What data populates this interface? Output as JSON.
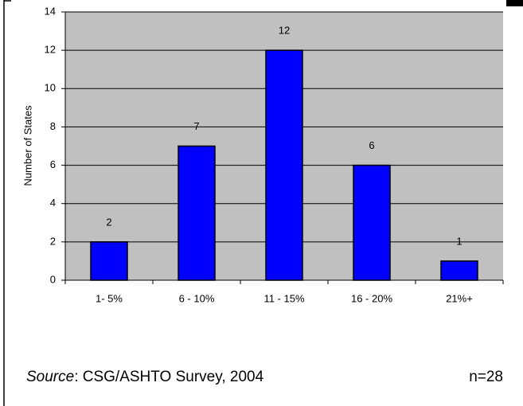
{
  "chart_data": {
    "type": "bar",
    "y_label": "Number of States",
    "categories": [
      "1- 5%",
      "6 - 10%",
      "11 - 15%",
      "16 - 20%",
      "21%+"
    ],
    "values": [
      2,
      7,
      12,
      6,
      1
    ],
    "color": "#0000ff",
    "ylim": [
      0,
      14
    ],
    "yticks": [
      0,
      2,
      4,
      6,
      8,
      10,
      12,
      14
    ],
    "grid": true,
    "source": {
      "label": "Source",
      "text": ": CSG/ASHTO Survey, 2004"
    },
    "note": "n=28"
  }
}
